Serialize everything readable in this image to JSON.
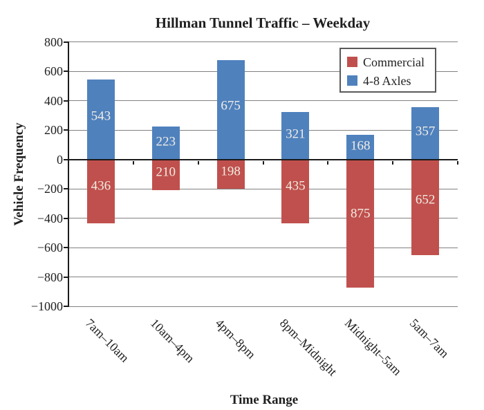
{
  "chart_data": {
    "type": "bar",
    "title": "Hillman Tunnel Traffic – Weekday",
    "xlabel": "Time Range",
    "ylabel": "Vehicle Frequency",
    "categories": [
      "7am–10am",
      "10am–4pm",
      "4pm–8pm",
      "8pm–Midnight",
      "Midnight–5am",
      "5am–7am"
    ],
    "series": [
      {
        "name": "Commercial",
        "color": "#C0504D",
        "direction": "down",
        "values": [
          436,
          210,
          198,
          435,
          875,
          652
        ]
      },
      {
        "name": "4-8 Axles",
        "color": "#4F81BD",
        "direction": "up",
        "values": [
          543,
          223,
          675,
          321,
          168,
          357
        ]
      }
    ],
    "bar_value_labels_visible": true,
    "ylim": [
      -1000,
      800
    ],
    "ytick_interval": 200,
    "yticks": [
      800,
      600,
      400,
      200,
      0,
      -200,
      -400,
      -600,
      -800,
      -1000
    ],
    "ytick_labels": [
      "800",
      "600",
      "400",
      "200",
      "0",
      "−200",
      "−400",
      "−600",
      "−800",
      "−1000"
    ],
    "grid": true,
    "legend_position": "top-right"
  },
  "legend": {
    "entries": [
      {
        "label": "Commercial",
        "color": "#C0504D"
      },
      {
        "label": "4-8 Axles",
        "color": "#4F81BD"
      }
    ]
  },
  "colors": {
    "commercial": "#C0504D",
    "axles_4_8": "#4F81BD",
    "gridline": "#808080",
    "axis": "#1a1a1a",
    "bar_label_text": "#F1EDE4",
    "legend_border": "#595959",
    "text": "#1f1f1f",
    "background": "#ffffff"
  }
}
